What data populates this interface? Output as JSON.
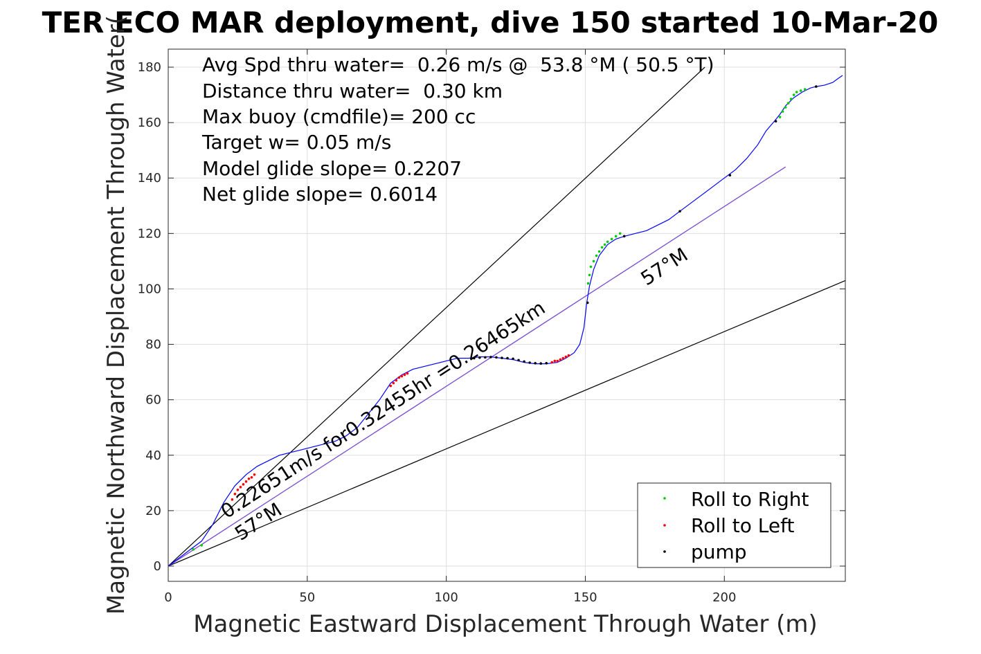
{
  "chart_data": {
    "type": "line",
    "title": "TER ECO MAR deployment, dive 150 started 10-Mar-20",
    "xlabel": "Magnetic Eastward Displacement Through Water (m)",
    "ylabel": "Magnetic Northward Displacement Through Water(",
    "xlim": [
      0,
      243.5
    ],
    "ylim": [
      -5.5,
      186.5
    ],
    "xticks": [
      0,
      50,
      100,
      150,
      200
    ],
    "yticks": [
      0,
      20,
      40,
      60,
      80,
      100,
      120,
      140,
      160,
      180
    ],
    "grid": true,
    "legend_position": "bottom-right",
    "annotations": [
      "Avg Spd thru water=  0.26 m/s @  53.8 °M ( 50.5 °T)",
      "Distance thru water=  0.30 km",
      "Max buoy (cmdfile)= 200 cc",
      "Target w= 0.05 m/s",
      "Model glide slope= 0.2207",
      "Net glide slope= 0.6014"
    ],
    "line_labels": [
      {
        "text": "0.22651m/s for0.32455hr =0.26465km",
        "at": [
          21,
          17
        ],
        "angle": -33
      },
      {
        "text": "57°M",
        "at": [
          26,
          9
        ],
        "angle": -33
      },
      {
        "text": "57°M",
        "at": [
          172,
          101
        ],
        "angle": -33
      }
    ],
    "reference_lines": [
      {
        "name": "upper",
        "x": [
          0,
          193
        ],
        "y": [
          0,
          180
        ],
        "color": "#000000"
      },
      {
        "name": "lower",
        "x": [
          0,
          243.5
        ],
        "y": [
          0,
          103
        ],
        "color": "#000000"
      },
      {
        "name": "heading",
        "x": [
          0,
          222
        ],
        "y": [
          0,
          144
        ],
        "color": "#ff00ff"
      },
      {
        "name": "heading-b",
        "x": [
          0,
          222
        ],
        "y": [
          0,
          144
        ],
        "color": "#6a5acd"
      }
    ],
    "series": [
      {
        "name": "track",
        "color": "#0000ff",
        "x": [
          0,
          4,
          8,
          12,
          16,
          20,
          24,
          28,
          32,
          36,
          40,
          44,
          48,
          52,
          56,
          60,
          64,
          68,
          72,
          76,
          80,
          84,
          88,
          92,
          96,
          100,
          104,
          108,
          112,
          116,
          120,
          124,
          128,
          132,
          136,
          140,
          143,
          146,
          148,
          149.5,
          150.5,
          151.5,
          153,
          155,
          158,
          161,
          164,
          168,
          172,
          176,
          180,
          184,
          188,
          192,
          196,
          200,
          204,
          208,
          212,
          215,
          218,
          220,
          222,
          225,
          228,
          231,
          233,
          236,
          239,
          241,
          242.5
        ],
        "y": [
          0,
          3,
          6,
          9,
          15,
          23,
          29,
          33,
          36,
          38,
          40,
          41,
          42,
          43,
          44,
          45,
          47,
          50,
          55,
          60,
          66,
          69,
          71,
          72,
          73,
          74,
          75,
          75,
          75.5,
          75.5,
          75,
          74.5,
          73.5,
          73,
          73,
          73.5,
          75,
          77,
          80,
          86,
          95,
          101,
          107,
          112,
          116,
          118,
          119,
          120,
          121,
          123,
          125,
          128,
          131,
          134,
          137,
          140,
          143,
          147,
          152,
          157,
          160.5,
          163,
          166,
          169,
          171,
          172.5,
          173,
          173.5,
          174.5,
          176,
          177
        ]
      },
      {
        "name": "Roll to Right",
        "color": "#00cc00",
        "x": [
          9,
          12,
          151,
          151.5,
          152,
          153,
          154,
          155,
          156,
          157,
          158,
          159.5,
          161,
          162.5,
          220,
          221,
          222,
          223,
          224,
          225,
          226,
          227.5,
          229
        ],
        "y": [
          6,
          7.5,
          102,
          105,
          108,
          110,
          112,
          113.5,
          115,
          116,
          117,
          118,
          119,
          120,
          162,
          164,
          165.5,
          167,
          168.5,
          170,
          171,
          171.5,
          172
        ]
      },
      {
        "name": "Roll to Left",
        "color": "#ff0000",
        "x": [
          23,
          24,
          25,
          26,
          27,
          28,
          29,
          30,
          31,
          80,
          81,
          82,
          83,
          84,
          85,
          86,
          138,
          139,
          140,
          141,
          142,
          143,
          144
        ],
        "y": [
          24,
          26,
          27.5,
          28.5,
          29.5,
          30.5,
          31.5,
          32,
          33,
          65,
          66,
          67,
          68,
          68.5,
          69,
          69.5,
          73.5,
          74,
          74,
          74.5,
          75,
          75.5,
          76
        ]
      },
      {
        "name": "pump",
        "color": "#000000",
        "x": [
          110,
          112,
          114,
          116,
          118,
          120,
          122,
          124,
          126,
          128,
          130,
          132,
          134,
          136,
          150.8,
          164,
          184,
          202,
          218.5,
          233
        ],
        "y": [
          75,
          75.2,
          75.3,
          75.4,
          75.3,
          75.1,
          75,
          74.8,
          74.3,
          73.8,
          73.4,
          73.2,
          73.1,
          73.2,
          95,
          119,
          128,
          141,
          160.5,
          173
        ]
      }
    ]
  }
}
